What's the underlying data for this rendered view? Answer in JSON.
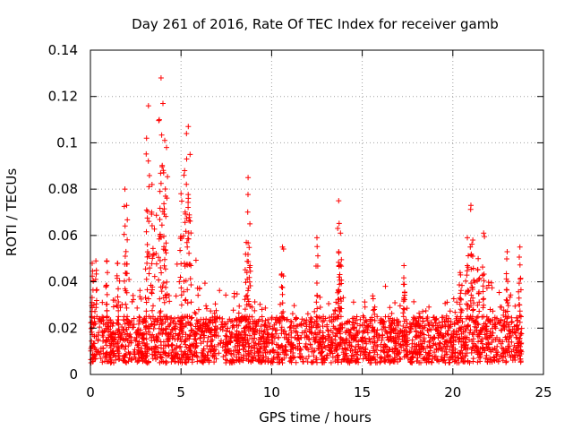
{
  "chart_data": {
    "type": "scatter",
    "title": "Day 261 of 2016, Rate Of TEC Index for receiver gamb",
    "xlabel": "GPS time / hours",
    "ylabel": "ROTI / TECUs",
    "xlim": [
      0,
      25
    ],
    "ylim": [
      0,
      0.14
    ],
    "x_ticks": [
      0,
      5,
      10,
      15,
      20,
      25
    ],
    "x_tick_labels": [
      "0",
      "5",
      "10",
      "15",
      "20",
      "25"
    ],
    "y_ticks": [
      0,
      0.02,
      0.04,
      0.06,
      0.08,
      0.1,
      0.12,
      0.14
    ],
    "y_tick_labels": [
      "0",
      "0.02",
      "0.04",
      "0.06",
      "0.08",
      "0.1",
      "0.12",
      "0.14"
    ],
    "grid": true,
    "marker": "+",
    "marker_color": "#ff0000",
    "series": [
      {
        "name": "ROTI",
        "x_range_hours": [
          0,
          23.8
        ],
        "background_band": [
          0.005,
          0.025
        ],
        "peaks": [
          {
            "x": 0.1,
            "y": 0.048
          },
          {
            "x": 0.3,
            "y": 0.049
          },
          {
            "x": 0.9,
            "y": 0.049
          },
          {
            "x": 1.5,
            "y": 0.048
          },
          {
            "x": 1.9,
            "y": 0.08
          },
          {
            "x": 2.0,
            "y": 0.073
          },
          {
            "x": 3.1,
            "y": 0.102
          },
          {
            "x": 3.2,
            "y": 0.116
          },
          {
            "x": 3.4,
            "y": 0.082
          },
          {
            "x": 3.8,
            "y": 0.11
          },
          {
            "x": 3.9,
            "y": 0.128
          },
          {
            "x": 4.0,
            "y": 0.117
          },
          {
            "x": 4.1,
            "y": 0.101
          },
          {
            "x": 4.2,
            "y": 0.098
          },
          {
            "x": 5.0,
            "y": 0.078
          },
          {
            "x": 5.2,
            "y": 0.088
          },
          {
            "x": 5.3,
            "y": 0.104
          },
          {
            "x": 5.4,
            "y": 0.107
          },
          {
            "x": 5.5,
            "y": 0.095
          },
          {
            "x": 8.7,
            "y": 0.085
          },
          {
            "x": 8.8,
            "y": 0.065
          },
          {
            "x": 8.6,
            "y": 0.057
          },
          {
            "x": 10.6,
            "y": 0.055
          },
          {
            "x": 12.5,
            "y": 0.059
          },
          {
            "x": 13.7,
            "y": 0.075
          },
          {
            "x": 13.8,
            "y": 0.061
          },
          {
            "x": 13.7,
            "y": 0.053
          },
          {
            "x": 17.3,
            "y": 0.047
          },
          {
            "x": 20.4,
            "y": 0.044
          },
          {
            "x": 20.8,
            "y": 0.059
          },
          {
            "x": 21.0,
            "y": 0.073
          },
          {
            "x": 21.1,
            "y": 0.058
          },
          {
            "x": 21.4,
            "y": 0.05
          },
          {
            "x": 21.7,
            "y": 0.061
          },
          {
            "x": 23.0,
            "y": 0.053
          },
          {
            "x": 23.7,
            "y": 0.055
          }
        ],
        "activity_envelope": [
          {
            "x": 0.0,
            "y": 0.03
          },
          {
            "x": 0.5,
            "y": 0.04
          },
          {
            "x": 1.0,
            "y": 0.032
          },
          {
            "x": 1.5,
            "y": 0.035
          },
          {
            "x": 2.0,
            "y": 0.06
          },
          {
            "x": 2.5,
            "y": 0.03
          },
          {
            "x": 3.0,
            "y": 0.045
          },
          {
            "x": 3.5,
            "y": 0.07
          },
          {
            "x": 4.0,
            "y": 0.09
          },
          {
            "x": 4.5,
            "y": 0.045
          },
          {
            "x": 5.0,
            "y": 0.06
          },
          {
            "x": 5.5,
            "y": 0.065
          },
          {
            "x": 6.0,
            "y": 0.042
          },
          {
            "x": 7.0,
            "y": 0.038
          },
          {
            "x": 8.0,
            "y": 0.035
          },
          {
            "x": 9.0,
            "y": 0.035
          },
          {
            "x": 10.0,
            "y": 0.03
          },
          {
            "x": 11.0,
            "y": 0.035
          },
          {
            "x": 12.0,
            "y": 0.036
          },
          {
            "x": 13.0,
            "y": 0.032
          },
          {
            "x": 14.0,
            "y": 0.034
          },
          {
            "x": 15.0,
            "y": 0.032
          },
          {
            "x": 16.0,
            "y": 0.038
          },
          {
            "x": 17.0,
            "y": 0.04
          },
          {
            "x": 18.0,
            "y": 0.03
          },
          {
            "x": 19.0,
            "y": 0.03
          },
          {
            "x": 20.0,
            "y": 0.035
          },
          {
            "x": 21.0,
            "y": 0.05
          },
          {
            "x": 22.0,
            "y": 0.04
          },
          {
            "x": 23.0,
            "y": 0.038
          },
          {
            "x": 23.8,
            "y": 0.04
          }
        ]
      }
    ]
  }
}
